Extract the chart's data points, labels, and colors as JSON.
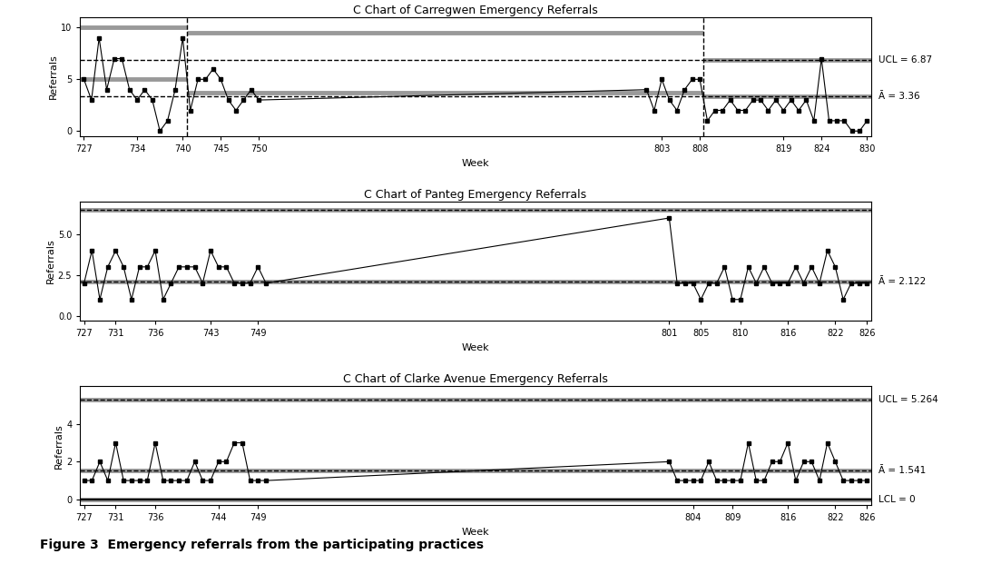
{
  "chart1": {
    "title": "C Chart of Carregwen Emergency Referrals",
    "xlabel": "Week",
    "ylabel": "Referrals",
    "xticks": [
      727,
      734,
      740,
      745,
      750,
      803,
      808,
      819,
      824,
      830
    ],
    "ylim": [
      -0.5,
      11
    ],
    "yticks": [
      0,
      5,
      10
    ],
    "data_x": [
      727,
      728,
      729,
      730,
      731,
      732,
      733,
      734,
      735,
      736,
      737,
      738,
      739,
      740,
      741,
      742,
      743,
      744,
      745,
      746,
      747,
      748,
      749,
      750,
      801,
      802,
      803,
      804,
      805,
      806,
      807,
      808,
      809,
      810,
      811,
      812,
      813,
      814,
      815,
      816,
      817,
      818,
      819,
      820,
      821,
      822,
      823,
      824,
      825,
      826,
      827,
      828,
      829,
      830
    ],
    "data_y": [
      5,
      3,
      9,
      4,
      7,
      7,
      4,
      3,
      4,
      3,
      0,
      1,
      4,
      9,
      2,
      5,
      5,
      6,
      5,
      3,
      2,
      3,
      4,
      3,
      4,
      2,
      5,
      3,
      2,
      4,
      5,
      5,
      1,
      2,
      2,
      3,
      2,
      2,
      3,
      3,
      2,
      3,
      2,
      3,
      2,
      3,
      1,
      7,
      1,
      1,
      1,
      0,
      0,
      1
    ],
    "phases": [
      {
        "start": 727,
        "end": 740,
        "ucl": 10.0,
        "cl": 5.0,
        "lcl": null
      },
      {
        "start": 741,
        "end": 808,
        "ucl": 9.5,
        "cl": 3.7,
        "lcl": null
      },
      {
        "start": 809,
        "end": 830,
        "ucl": 6.87,
        "cl": 3.36,
        "lcl": null
      }
    ],
    "vlines": [
      740.5,
      808.5
    ],
    "global_ucl": 6.87,
    "global_cl": 3.36,
    "ucl_label": "UCL = 6.87",
    "cl_label": "Ā = 3.36"
  },
  "chart2": {
    "title": "C Chart of Panteg Emergency Referrals",
    "xlabel": "Week",
    "ylabel": "Referrals",
    "xticks": [
      727,
      731,
      736,
      743,
      749,
      801,
      805,
      810,
      816,
      822,
      826
    ],
    "ylim": [
      -0.3,
      7
    ],
    "yticks": [
      0.0,
      2.5,
      5.0
    ],
    "data_x": [
      727,
      728,
      729,
      730,
      731,
      732,
      733,
      734,
      735,
      736,
      737,
      738,
      739,
      740,
      741,
      742,
      743,
      744,
      745,
      746,
      747,
      748,
      749,
      750,
      801,
      802,
      803,
      804,
      805,
      806,
      807,
      808,
      809,
      810,
      811,
      812,
      813,
      814,
      815,
      816,
      817,
      818,
      819,
      820,
      821,
      822,
      823,
      824,
      825,
      826
    ],
    "data_y": [
      2,
      4,
      1,
      3,
      4,
      3,
      1,
      3,
      3,
      4,
      1,
      2,
      3,
      3,
      3,
      2,
      4,
      3,
      3,
      2,
      2,
      2,
      3,
      2,
      6,
      2,
      2,
      2,
      1,
      2,
      2,
      3,
      1,
      1,
      3,
      2,
      3,
      2,
      2,
      2,
      3,
      2,
      3,
      2,
      4,
      3,
      1,
      2,
      2,
      2
    ],
    "ucl": 6.5,
    "cl": 2.122,
    "lcl": null,
    "ucl_label": null,
    "cl_label": "Ā = 2.122"
  },
  "chart3": {
    "title": "C Chart of Clarke Avenue Emergency Referrals",
    "xlabel": "Week",
    "ylabel": "Referrals",
    "xticks": [
      727,
      731,
      736,
      744,
      749,
      804,
      809,
      816,
      822,
      826
    ],
    "ylim": [
      -0.3,
      6
    ],
    "yticks": [
      0,
      2,
      4
    ],
    "data_x": [
      727,
      728,
      729,
      730,
      731,
      732,
      733,
      734,
      735,
      736,
      737,
      738,
      739,
      740,
      741,
      742,
      743,
      744,
      745,
      746,
      747,
      748,
      749,
      750,
      801,
      802,
      803,
      804,
      805,
      806,
      807,
      808,
      809,
      810,
      811,
      812,
      813,
      814,
      815,
      816,
      817,
      818,
      819,
      820,
      821,
      822,
      823,
      824,
      825,
      826
    ],
    "data_y": [
      1,
      1,
      2,
      1,
      3,
      1,
      1,
      1,
      1,
      3,
      1,
      1,
      1,
      1,
      2,
      1,
      1,
      2,
      2,
      3,
      3,
      1,
      1,
      1,
      2,
      1,
      1,
      1,
      1,
      2,
      1,
      1,
      1,
      1,
      3,
      1,
      1,
      2,
      2,
      3,
      1,
      2,
      2,
      1,
      3,
      2,
      1,
      1,
      1,
      1
    ],
    "ucl": 5.264,
    "cl": 1.541,
    "lcl": 0,
    "ucl_label": "UCL = 5.264",
    "cl_label": "Ā = 1.541",
    "lcl_label": "LCL = 0"
  },
  "figure_caption": "Figure 3  Emergency referrals from the participating practices",
  "gray_color": "#999999",
  "line_color": "#000000",
  "dashed_color": "#000000"
}
